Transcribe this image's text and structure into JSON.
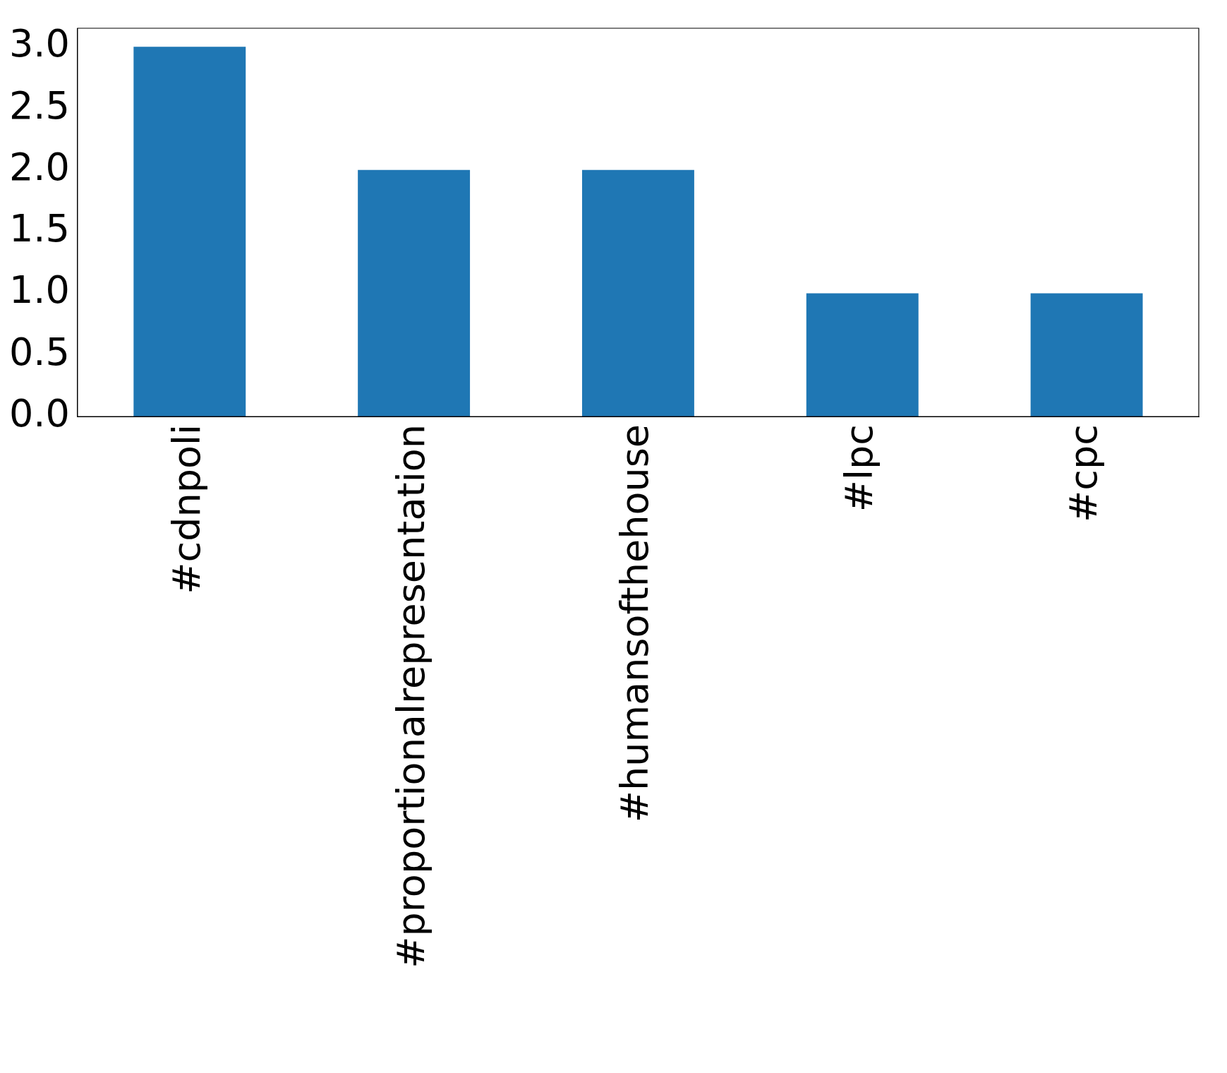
{
  "chart_data": {
    "type": "bar",
    "categories": [
      "#cdnpoli",
      "#proportionalrepresentation",
      "#humansofthehouse",
      "#lpc",
      "#cpc"
    ],
    "values": [
      3,
      2,
      2,
      1,
      1
    ],
    "color": "#1f77b4",
    "ylim": [
      0,
      3.15
    ],
    "yticks": [
      {
        "value": 0,
        "label": "0.0"
      },
      {
        "value": 0.5,
        "label": "0.5"
      },
      {
        "value": 1,
        "label": "1.0"
      },
      {
        "value": 1.5,
        "label": "1.5"
      },
      {
        "value": 2,
        "label": "2.0"
      },
      {
        "value": 2.5,
        "label": "2.5"
      },
      {
        "value": 3,
        "label": "3.0"
      }
    ],
    "grid": false,
    "legend": false
  }
}
